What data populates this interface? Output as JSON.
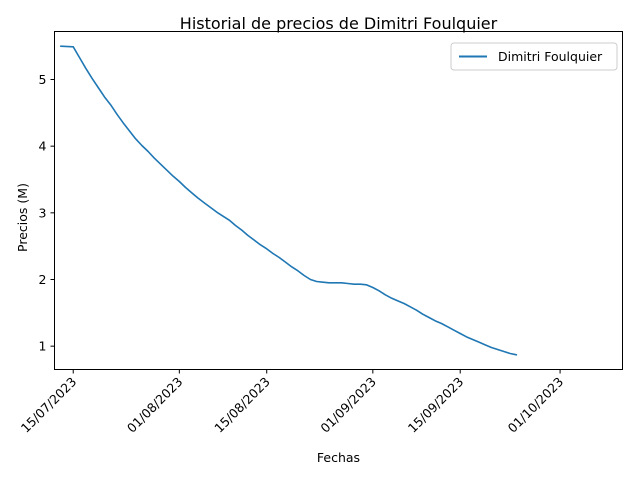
{
  "chart_data": {
    "type": "line",
    "title": "Historial de precios de Dimitri Foulquier",
    "xlabel": "Fechas",
    "ylabel": "Precios (M)",
    "grid": false,
    "legend_position": "top-right",
    "ylim": [
      0.65,
      5.72
    ],
    "xlim": [
      "2023-07-12",
      "2023-10-11"
    ],
    "yticks": [
      1,
      2,
      3,
      4,
      5
    ],
    "xticks": [
      "2023-07-15",
      "2023-08-01",
      "2023-08-15",
      "2023-09-01",
      "2023-09-15",
      "2023-10-01"
    ],
    "xtick_labels": [
      "15/07/2023",
      "01/08/2023",
      "15/08/2023",
      "01/09/2023",
      "15/09/2023",
      "01/10/2023"
    ],
    "series": [
      {
        "name": "Dimitri Foulquier",
        "color": "#1f77b4",
        "points": [
          [
            "2023-07-13",
            5.5
          ],
          [
            "2023-07-15",
            5.49
          ],
          [
            "2023-07-16",
            5.33
          ],
          [
            "2023-07-17",
            5.17
          ],
          [
            "2023-07-18",
            5.02
          ],
          [
            "2023-07-19",
            4.88
          ],
          [
            "2023-07-20",
            4.74
          ],
          [
            "2023-07-21",
            4.62
          ],
          [
            "2023-07-22",
            4.48
          ],
          [
            "2023-07-23",
            4.35
          ],
          [
            "2023-07-24",
            4.23
          ],
          [
            "2023-07-25",
            4.11
          ],
          [
            "2023-07-26",
            4.01
          ],
          [
            "2023-07-27",
            3.92
          ],
          [
            "2023-07-28",
            3.82
          ],
          [
            "2023-07-29",
            3.73
          ],
          [
            "2023-07-30",
            3.64
          ],
          [
            "2023-07-31",
            3.55
          ],
          [
            "2023-08-01",
            3.47
          ],
          [
            "2023-08-02",
            3.38
          ],
          [
            "2023-08-03",
            3.3
          ],
          [
            "2023-08-04",
            3.22
          ],
          [
            "2023-08-05",
            3.15
          ],
          [
            "2023-08-06",
            3.08
          ],
          [
            "2023-08-07",
            3.01
          ],
          [
            "2023-08-08",
            2.95
          ],
          [
            "2023-08-09",
            2.89
          ],
          [
            "2023-08-10",
            2.81
          ],
          [
            "2023-08-11",
            2.74
          ],
          [
            "2023-08-12",
            2.66
          ],
          [
            "2023-08-13",
            2.59
          ],
          [
            "2023-08-14",
            2.52
          ],
          [
            "2023-08-15",
            2.46
          ],
          [
            "2023-08-16",
            2.39
          ],
          [
            "2023-08-17",
            2.33
          ],
          [
            "2023-08-18",
            2.26
          ],
          [
            "2023-08-19",
            2.19
          ],
          [
            "2023-08-20",
            2.13
          ],
          [
            "2023-08-21",
            2.06
          ],
          [
            "2023-08-22",
            2.0
          ],
          [
            "2023-08-23",
            1.97
          ],
          [
            "2023-08-24",
            1.96
          ],
          [
            "2023-08-25",
            1.95
          ],
          [
            "2023-08-26",
            1.95
          ],
          [
            "2023-08-27",
            1.95
          ],
          [
            "2023-08-28",
            1.94
          ],
          [
            "2023-08-29",
            1.93
          ],
          [
            "2023-08-30",
            1.93
          ],
          [
            "2023-08-31",
            1.92
          ],
          [
            "2023-09-01",
            1.88
          ],
          [
            "2023-09-02",
            1.83
          ],
          [
            "2023-09-03",
            1.77
          ],
          [
            "2023-09-04",
            1.72
          ],
          [
            "2023-09-05",
            1.68
          ],
          [
            "2023-09-06",
            1.64
          ],
          [
            "2023-09-07",
            1.59
          ],
          [
            "2023-09-08",
            1.54
          ],
          [
            "2023-09-09",
            1.48
          ],
          [
            "2023-09-10",
            1.43
          ],
          [
            "2023-09-11",
            1.38
          ],
          [
            "2023-09-12",
            1.34
          ],
          [
            "2023-09-13",
            1.29
          ],
          [
            "2023-09-14",
            1.24
          ],
          [
            "2023-09-15",
            1.19
          ],
          [
            "2023-09-16",
            1.14
          ],
          [
            "2023-09-17",
            1.1
          ],
          [
            "2023-09-18",
            1.06
          ],
          [
            "2023-09-19",
            1.02
          ],
          [
            "2023-09-20",
            0.98
          ],
          [
            "2023-09-21",
            0.95
          ],
          [
            "2023-09-22",
            0.92
          ],
          [
            "2023-09-23",
            0.89
          ],
          [
            "2023-09-24",
            0.87
          ]
        ]
      }
    ]
  }
}
